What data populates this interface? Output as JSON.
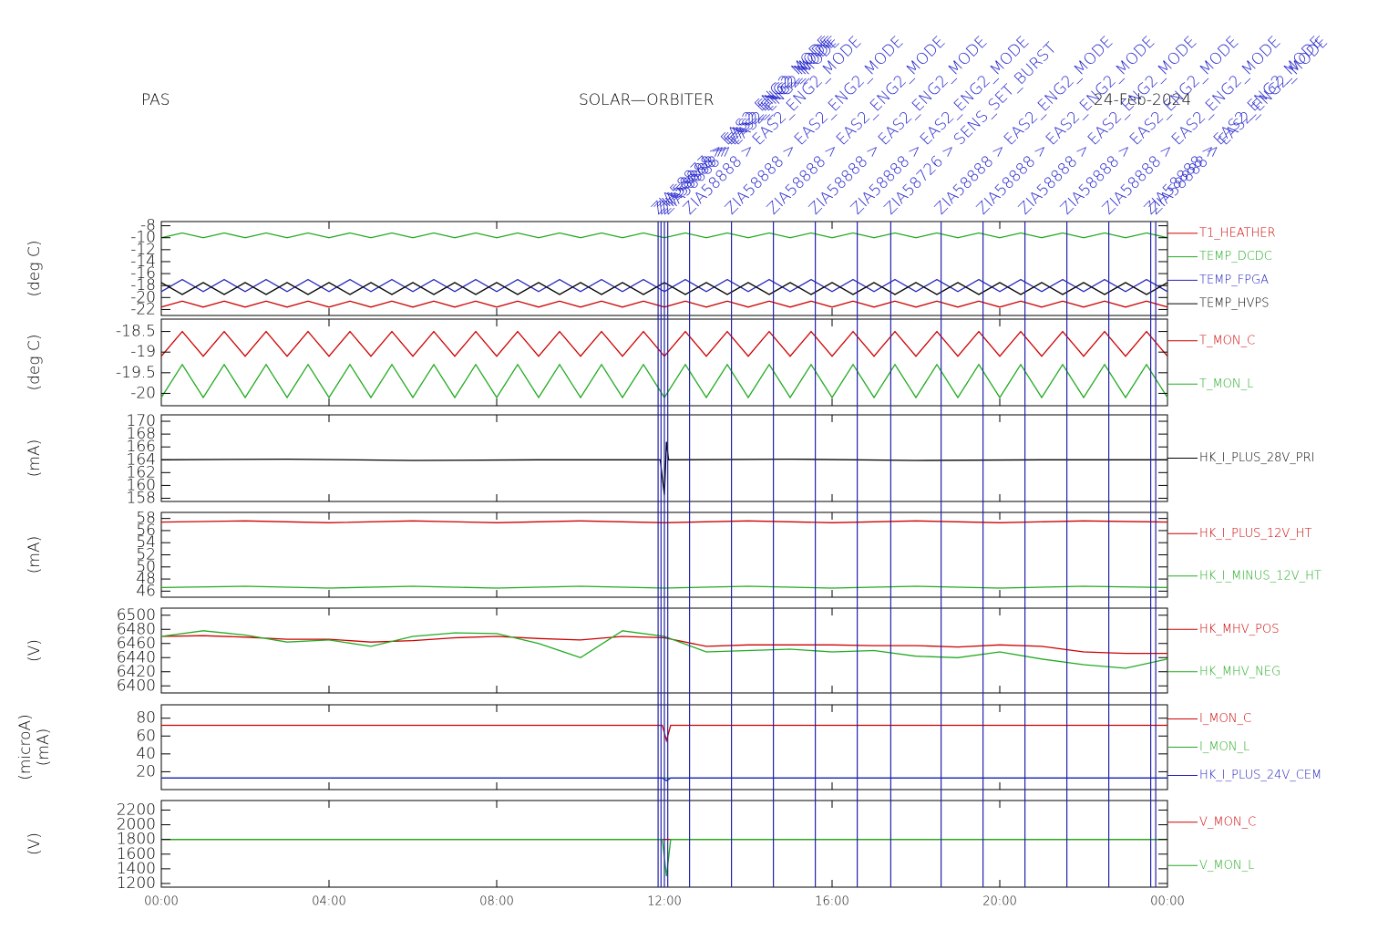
{
  "header": {
    "left": "PAS",
    "center": "SOLAR—ORBITER",
    "right": "24-Feb-2024"
  },
  "events": {
    "x": [
      11.85,
      11.92,
      12.0,
      12.08,
      12.6,
      13.6,
      14.6,
      15.6,
      16.6,
      17.4,
      18.6,
      19.6,
      20.6,
      21.6,
      22.6,
      23.6,
      23.72
    ],
    "labels": [
      "ZIA58877 > EAS2_ENG2_MODE",
      "ZIA58888 > EAS2_ENG2_MODE",
      "ZIA58888 > EAS2_ENG2_MODE",
      "ZIA58888 > EAS2_ENG2_MODE",
      "ZIA58888 > EAS2_ENG2_MODE",
      "ZIA58888 > EAS2_ENG2_MODE",
      "ZIA58888 > EAS2_ENG2_MODE",
      "ZIA58888 > EAS2_ENG2_MODE",
      "ZIA58888 > EAS2_ENG2_MODE",
      "ZIA58726 > SENS_SET_BURST",
      "ZIA58888 > EAS2_ENG2_MODE",
      "ZIA58888 > EAS2_ENG2_MODE",
      "ZIA58888 > EAS2_ENG2_MODE",
      "ZIA58888 > EAS2_ENG2_MODE",
      "ZIA58888 > EAS2_ENG2_MODE",
      "ZIA58888 > EAS2_ENG2_MODE",
      "ZIA58888 > EAS2_ENG2_MODE"
    ]
  },
  "chart_data": [
    {
      "type": "line",
      "ylabel": [
        "(deg C)"
      ],
      "xlim": [
        0,
        24
      ],
      "ylim": [
        -23,
        -7.3
      ],
      "yticks": [
        -22,
        -20,
        -18,
        -16,
        -14,
        -12,
        -10,
        -8
      ],
      "x": [
        0,
        0.5,
        1,
        1.5,
        2,
        2.5,
        3,
        3.5,
        4,
        4.5,
        5,
        5.5,
        6,
        6.5,
        7,
        7.5,
        8,
        8.5,
        9,
        9.5,
        10,
        10.5,
        11,
        11.5,
        12,
        12.5,
        13,
        13.5,
        14,
        14.5,
        15,
        15.5,
        16,
        16.5,
        17,
        17.5,
        18,
        18.5,
        19,
        19.5,
        20,
        20.5,
        21,
        21.5,
        22,
        22.5,
        23,
        23.5,
        24
      ],
      "series": [
        {
          "name": "T1_HEATHER",
          "color": "#cc0000",
          "values": [
            -21.6,
            -20.6,
            -21.6,
            -20.6,
            -21.6,
            -20.6,
            -21.6,
            -20.6,
            -21.6,
            -20.6,
            -21.6,
            -20.6,
            -21.6,
            -20.6,
            -21.6,
            -20.6,
            -21.6,
            -20.6,
            -21.6,
            -20.6,
            -21.6,
            -20.6,
            -21.6,
            -20.6,
            -21.6,
            -20.6,
            -21.6,
            -20.6,
            -21.6,
            -20.6,
            -21.6,
            -20.6,
            -21.6,
            -20.6,
            -21.6,
            -20.6,
            -21.6,
            -20.6,
            -21.6,
            -20.6,
            -21.6,
            -20.6,
            -21.6,
            -20.6,
            -21.6,
            -20.6,
            -21.6,
            -20.6,
            -21.6
          ]
        },
        {
          "name": "TEMP_DCDC",
          "color": "#22aa22",
          "values": [
            -10.0,
            -9.2,
            -10.0,
            -9.2,
            -10.0,
            -9.2,
            -10.0,
            -9.2,
            -10.0,
            -9.2,
            -10.0,
            -9.2,
            -10.0,
            -9.2,
            -10.0,
            -9.2,
            -10.0,
            -9.2,
            -10.0,
            -9.2,
            -10.0,
            -9.2,
            -10.0,
            -9.2,
            -10.0,
            -9.2,
            -10.0,
            -9.2,
            -10.0,
            -9.2,
            -10.0,
            -9.2,
            -10.0,
            -9.2,
            -10.0,
            -9.2,
            -10.0,
            -9.2,
            -10.0,
            -9.2,
            -10.0,
            -9.2,
            -10.0,
            -9.2,
            -10.0,
            -9.2,
            -10.0,
            -9.2,
            -10.0
          ]
        },
        {
          "name": "TEMP_FPGA",
          "color": "#2222bb",
          "values": [
            -19.0,
            -17.0,
            -19.0,
            -17.0,
            -19.0,
            -17.0,
            -19.0,
            -17.0,
            -19.0,
            -17.0,
            -19.0,
            -17.0,
            -19.0,
            -17.0,
            -19.0,
            -17.0,
            -19.0,
            -17.0,
            -19.0,
            -17.0,
            -19.0,
            -17.0,
            -19.0,
            -17.0,
            -19.0,
            -17.0,
            -19.0,
            -17.0,
            -19.0,
            -17.0,
            -19.0,
            -17.0,
            -19.0,
            -17.0,
            -19.0,
            -17.0,
            -19.0,
            -17.0,
            -19.0,
            -17.0,
            -19.0,
            -17.0,
            -19.0,
            -17.0,
            -19.0,
            -17.0,
            -19.0,
            -17.0,
            -19.0
          ]
        },
        {
          "name": "TEMP_HVPS",
          "color": "#000000",
          "values": [
            -17.5,
            -19.5,
            -17.5,
            -19.5,
            -17.5,
            -19.5,
            -17.5,
            -19.5,
            -17.5,
            -19.5,
            -17.5,
            -19.5,
            -17.5,
            -19.5,
            -17.5,
            -19.5,
            -17.5,
            -19.5,
            -17.5,
            -19.5,
            -17.5,
            -19.5,
            -17.5,
            -19.5,
            -17.5,
            -19.5,
            -17.5,
            -19.5,
            -17.5,
            -19.5,
            -17.5,
            -19.5,
            -17.5,
            -19.5,
            -17.5,
            -19.5,
            -17.5,
            -19.5,
            -17.5,
            -19.5,
            -17.5,
            -19.5,
            -17.5,
            -19.5,
            -17.5,
            -19.5,
            -17.5,
            -19.5,
            -17.5
          ]
        }
      ]
    },
    {
      "type": "line",
      "ylabel": [
        "(deg C)"
      ],
      "xlim": [
        0,
        24
      ],
      "ylim": [
        -20.3,
        -18.2
      ],
      "yticks": [
        -20.0,
        -19.5,
        -19.0,
        -18.5
      ],
      "x": [
        0,
        0.5,
        1,
        1.5,
        2,
        2.5,
        3,
        3.5,
        4,
        4.5,
        5,
        5.5,
        6,
        6.5,
        7,
        7.5,
        8,
        8.5,
        9,
        9.5,
        10,
        10.5,
        11,
        11.5,
        12,
        12.5,
        13,
        13.5,
        14,
        14.5,
        15,
        15.5,
        16,
        16.5,
        17,
        17.5,
        18,
        18.5,
        19,
        19.5,
        20,
        20.5,
        21,
        21.5,
        22,
        22.5,
        23,
        23.5,
        24
      ],
      "series": [
        {
          "name": "T_MON_C",
          "color": "#cc0000",
          "values": [
            -19.1,
            -18.5,
            -19.1,
            -18.5,
            -19.1,
            -18.5,
            -19.1,
            -18.5,
            -19.1,
            -18.5,
            -19.1,
            -18.5,
            -19.1,
            -18.5,
            -19.1,
            -18.5,
            -19.1,
            -18.5,
            -19.1,
            -18.5,
            -19.1,
            -18.5,
            -19.1,
            -18.5,
            -19.1,
            -18.5,
            -19.1,
            -18.5,
            -19.1,
            -18.5,
            -19.1,
            -18.5,
            -19.1,
            -18.5,
            -19.1,
            -18.5,
            -19.1,
            -18.5,
            -19.1,
            -18.5,
            -19.1,
            -18.5,
            -19.1,
            -18.5,
            -19.1,
            -18.5,
            -19.1,
            -18.5,
            -19.1
          ]
        },
        {
          "name": "T_MON_L",
          "color": "#22aa22",
          "values": [
            -20.1,
            -19.3,
            -20.1,
            -19.3,
            -20.1,
            -19.3,
            -20.1,
            -19.3,
            -20.1,
            -19.3,
            -20.1,
            -19.3,
            -20.1,
            -19.3,
            -20.1,
            -19.3,
            -20.1,
            -19.3,
            -20.1,
            -19.3,
            -20.1,
            -19.3,
            -20.1,
            -19.3,
            -20.1,
            -19.3,
            -20.1,
            -19.3,
            -20.1,
            -19.3,
            -20.1,
            -19.3,
            -20.1,
            -19.3,
            -20.1,
            -19.3,
            -20.1,
            -19.3,
            -20.1,
            -19.3,
            -20.1,
            -19.3,
            -20.1,
            -19.3,
            -20.1,
            -19.3,
            -20.1,
            -19.3,
            -20.1
          ]
        }
      ]
    },
    {
      "type": "line",
      "ylabel": [
        "(mA)"
      ],
      "xlim": [
        0,
        24
      ],
      "ylim": [
        157.5,
        171
      ],
      "yticks": [
        158,
        160,
        162,
        164,
        166,
        168,
        170
      ],
      "x": [
        0,
        3,
        6,
        9,
        11.9,
        12.0,
        12.05,
        12.1,
        12.2,
        15,
        18,
        21,
        24
      ],
      "series": [
        {
          "name": "HK_I_PLUS_28V_PRI",
          "color": "#000000",
          "values": [
            164,
            164.1,
            163.9,
            164,
            164,
            158.5,
            166.8,
            164,
            164,
            164.1,
            163.9,
            164,
            164
          ]
        }
      ]
    },
    {
      "type": "line",
      "ylabel": [
        "(mA)"
      ],
      "xlim": [
        0,
        24
      ],
      "ylim": [
        45,
        59
      ],
      "yticks": [
        46,
        48,
        50,
        52,
        54,
        56,
        58
      ],
      "x": [
        0,
        2,
        4,
        6,
        8,
        10,
        12,
        14,
        16,
        18,
        20,
        22,
        24
      ],
      "series": [
        {
          "name": "HK_I_PLUS_12V_HT",
          "color": "#cc0000",
          "values": [
            57.4,
            57.6,
            57.3,
            57.6,
            57.3,
            57.6,
            57.3,
            57.6,
            57.3,
            57.6,
            57.3,
            57.6,
            57.4
          ]
        },
        {
          "name": "HK_I_MINUS_12V_HT",
          "color": "#22aa22",
          "values": [
            46.6,
            46.8,
            46.5,
            46.8,
            46.5,
            46.8,
            46.5,
            46.8,
            46.5,
            46.8,
            46.5,
            46.8,
            46.6
          ]
        }
      ]
    },
    {
      "type": "line",
      "ylabel": [
        "(V)"
      ],
      "xlim": [
        0,
        24
      ],
      "ylim": [
        6390,
        6510
      ],
      "yticks": [
        6400,
        6420,
        6440,
        6460,
        6480,
        6500
      ],
      "x": [
        0,
        1,
        2,
        3,
        4,
        5,
        6,
        7,
        8,
        9,
        10,
        11,
        12,
        13,
        14,
        15,
        16,
        17,
        18,
        19,
        20,
        21,
        22,
        23,
        24
      ],
      "series": [
        {
          "name": "HK_MHV_POS",
          "color": "#cc0000",
          "values": [
            6470,
            6471,
            6469,
            6466,
            6466,
            6462,
            6464,
            6468,
            6470,
            6467,
            6465,
            6470,
            6468,
            6456,
            6458,
            6458,
            6458,
            6457,
            6457,
            6455,
            6458,
            6456,
            6448,
            6446,
            6446
          ]
        },
        {
          "name": "HK_MHV_NEG",
          "color": "#22aa22",
          "values": [
            6470,
            6478,
            6472,
            6462,
            6465,
            6456,
            6470,
            6475,
            6474,
            6460,
            6440,
            6478,
            6470,
            6448,
            6450,
            6452,
            6448,
            6450,
            6442,
            6440,
            6448,
            6438,
            6430,
            6425,
            6438
          ]
        }
      ]
    },
    {
      "type": "line",
      "ylabel": [
        "(microA)",
        "(mA)"
      ],
      "xlim": [
        0,
        24
      ],
      "ylim": [
        0,
        95
      ],
      "yticks": [
        20,
        40,
        60,
        80
      ],
      "x": [
        0,
        6,
        11.95,
        12.05,
        12.15,
        18,
        24
      ],
      "series": [
        {
          "name": "I_MON_C",
          "color": "#cc0000",
          "values": [
            72,
            72,
            72,
            55,
            72,
            72,
            72
          ]
        },
        {
          "name": "I_MON_L",
          "color": "#22aa22",
          "values": [
            13,
            13,
            13,
            13,
            13,
            13,
            13
          ]
        },
        {
          "name": "HK_I_PLUS_24V_CEM",
          "color": "#2222bb",
          "values": [
            13,
            13,
            13,
            10,
            13,
            13,
            13
          ]
        }
      ]
    },
    {
      "type": "line",
      "ylabel": [
        "(V)"
      ],
      "xlim": [
        0,
        24
      ],
      "ylim": [
        1150,
        2330
      ],
      "yticks": [
        1200,
        1400,
        1600,
        1800,
        2000,
        2200
      ],
      "xticks": [
        {
          "value": 0,
          "label": "00:00"
        },
        {
          "value": 4,
          "label": "04:00"
        },
        {
          "value": 8,
          "label": "08:00"
        },
        {
          "value": 12,
          "label": "12:00"
        },
        {
          "value": 16,
          "label": "16:00"
        },
        {
          "value": 20,
          "label": "20:00"
        },
        {
          "value": 24,
          "label": "00:00"
        }
      ],
      "x": [
        0,
        6,
        11.95,
        12.05,
        12.15,
        18,
        24
      ],
      "series": [
        {
          "name": "V_MON_C",
          "color": "#cc0000",
          "values": [
            1800,
            1800,
            1800,
            1800,
            1800,
            1800,
            1800
          ]
        },
        {
          "name": "V_MON_L",
          "color": "#22aa22",
          "values": [
            1800,
            1800,
            1800,
            1300,
            1800,
            1800,
            1800
          ]
        }
      ]
    }
  ]
}
